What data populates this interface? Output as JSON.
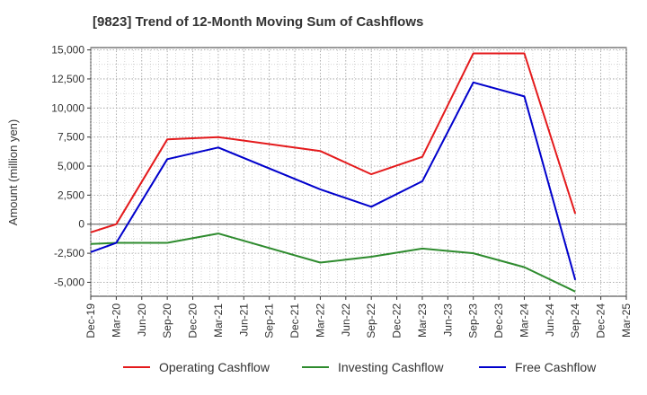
{
  "chart_data": {
    "type": "line",
    "title": "[9823]  Trend of 12-Month Moving Sum of Cashflows",
    "xlabel": "",
    "ylabel": "Amount (million yen)",
    "categories": [
      "Dec-19",
      "Mar-20",
      "Jun-20",
      "Sep-20",
      "Dec-20",
      "Mar-21",
      "Jun-21",
      "Sep-21",
      "Dec-21",
      "Mar-22",
      "Jun-22",
      "Sep-22",
      "Dec-22",
      "Mar-23",
      "Jun-23",
      "Sep-23",
      "Dec-23",
      "Mar-24",
      "Jun-24",
      "Sep-24",
      "Dec-24",
      "Mar-25"
    ],
    "ylim": [
      -6200,
      15200
    ],
    "yticks": [
      -5000,
      -2500,
      0,
      2500,
      5000,
      7500,
      10000,
      12500,
      15000
    ],
    "ytick_labels": [
      "-5,000",
      "-2,500",
      "0",
      "2,500",
      "5,000",
      "7,500",
      "10,000",
      "12,500",
      "15,000"
    ],
    "grid": true,
    "legend_position": "bottom",
    "series": [
      {
        "name": "Operating Cashflow",
        "color": "#e41a1c",
        "values": [
          -700,
          0,
          null,
          7300,
          null,
          7500,
          null,
          null,
          null,
          6300,
          null,
          4300,
          null,
          5800,
          null,
          14700,
          null,
          14700,
          null,
          900,
          null,
          null
        ]
      },
      {
        "name": "Investing Cashflow",
        "color": "#2e8b2e",
        "values": [
          -1700,
          -1600,
          null,
          -1600,
          null,
          -800,
          null,
          null,
          null,
          -3300,
          null,
          -2800,
          null,
          -2100,
          null,
          -2500,
          null,
          -3700,
          null,
          -5800,
          null,
          null
        ]
      },
      {
        "name": "Free Cashflow",
        "color": "#0000cc",
        "values": [
          -2400,
          -1600,
          null,
          5600,
          null,
          6600,
          null,
          null,
          null,
          3000,
          null,
          1500,
          null,
          3700,
          null,
          12200,
          null,
          11000,
          null,
          -4800,
          null,
          null
        ]
      }
    ]
  }
}
